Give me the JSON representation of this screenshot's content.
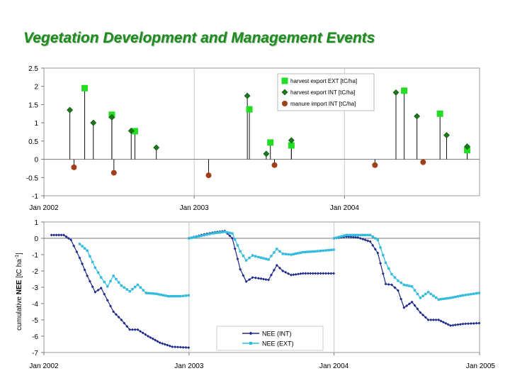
{
  "page": {
    "title": "Vegetation Development and Management Events"
  },
  "colors": {
    "harvest_ext": "#22dd22",
    "harvest_int": "#1a7a1a",
    "manure": "#a0401a",
    "nee_int": "#1e2a8a",
    "nee_ext": "#33bbdd",
    "title": "#1f8a1f"
  },
  "chart_data": [
    {
      "type": "scatter",
      "title": "",
      "xlabel": "",
      "ylabel": "",
      "x_ticks": [
        "Jan 2002",
        "Jan 2003",
        "Jan 2004"
      ],
      "x_range": [
        "2002-01-01",
        "2004-11-24"
      ],
      "ylim": [
        -1,
        2.5
      ],
      "y_ticks": [
        2.5,
        2,
        1.5,
        1,
        0.5,
        0,
        -0.5,
        -1
      ],
      "grid": "vertical lines at year boundaries",
      "legend_position": "top-right",
      "series": [
        {
          "name": "harvest export EXT [tC/ha]",
          "marker": "square",
          "points": [
            {
              "x": "2002-04-10",
              "y": 1.95
            },
            {
              "x": "2002-06-15",
              "y": 1.22
            },
            {
              "x": "2002-08-10",
              "y": 0.77
            },
            {
              "x": "2003-05-15",
              "y": 1.37
            },
            {
              "x": "2003-07-05",
              "y": 0.46
            },
            {
              "x": "2003-08-25",
              "y": 0.38
            },
            {
              "x": "2004-05-25",
              "y": 1.88
            },
            {
              "x": "2004-08-20",
              "y": 1.25
            },
            {
              "x": "2004-10-25",
              "y": 0.25
            }
          ]
        },
        {
          "name": "harvest export INT [tC/ha]",
          "marker": "diamond",
          "points": [
            {
              "x": "2002-03-05",
              "y": 1.35
            },
            {
              "x": "2002-05-01",
              "y": 1.0
            },
            {
              "x": "2002-06-15",
              "y": 1.15
            },
            {
              "x": "2002-08-01",
              "y": 0.78
            },
            {
              "x": "2002-10-01",
              "y": 0.32
            },
            {
              "x": "2003-05-10",
              "y": 1.74
            },
            {
              "x": "2003-06-25",
              "y": 0.15
            },
            {
              "x": "2003-08-25",
              "y": 0.52
            },
            {
              "x": "2004-05-05",
              "y": 1.83
            },
            {
              "x": "2004-06-25",
              "y": 1.18
            },
            {
              "x": "2004-09-05",
              "y": 0.66
            },
            {
              "x": "2004-10-25",
              "y": 0.35
            }
          ]
        },
        {
          "name": "manure import INT [tC/ha]",
          "marker": "circle",
          "points": [
            {
              "x": "2002-03-15",
              "y": -0.22
            },
            {
              "x": "2002-06-20",
              "y": -0.37
            },
            {
              "x": "2003-02-05",
              "y": -0.44
            },
            {
              "x": "2003-07-15",
              "y": -0.16
            },
            {
              "x": "2004-03-15",
              "y": -0.16
            },
            {
              "x": "2004-07-10",
              "y": -0.08
            }
          ]
        }
      ]
    },
    {
      "type": "line",
      "title": "",
      "xlabel": "",
      "ylabel": "cumulative NEE [tC ha-1]",
      "ylabel_parts": {
        "pre": "cumulative ",
        "bold": "NEE",
        "post": " [tC ha",
        "sup": "-1",
        "end": "]"
      },
      "x_ticks": [
        "Jan 2002",
        "Jan 2003",
        "Jan 2004",
        "Jan 2005"
      ],
      "x_range": [
        "2002-01-01",
        "2005-01-01"
      ],
      "ylim": [
        -7,
        1
      ],
      "y_ticks": [
        1,
        0,
        -1,
        -2,
        -3,
        -4,
        -5,
        -6,
        -7
      ],
      "grid": "vertical lines at year boundaries",
      "legend_position": "bottom-center",
      "series": [
        {
          "name": "NEE (INT)",
          "segments": [
            {
              "x": [
                "2002-01-20",
                "2002-02-20",
                "2002-03-10",
                "2002-04-01",
                "2002-04-20",
                "2002-05-10",
                "2002-05-25",
                "2002-06-10",
                "2002-06-25",
                "2002-07-15",
                "2002-08-05",
                "2002-08-25",
                "2002-09-20",
                "2002-10-20",
                "2002-11-20",
                "2002-12-31"
              ],
              "y": [
                0.2,
                0.2,
                -0.1,
                -1.2,
                -2.3,
                -3.3,
                -3.05,
                -3.8,
                -4.5,
                -5.0,
                -5.6,
                -5.6,
                -6.0,
                -6.4,
                -6.65,
                -6.7
              ]
            },
            {
              "x": [
                "2003-01-01",
                "2003-02-01",
                "2003-03-01",
                "2003-04-01",
                "2003-04-20",
                "2003-05-10",
                "2003-05-25",
                "2003-06-10",
                "2003-06-25",
                "2003-07-20",
                "2003-08-10",
                "2003-08-25",
                "2003-09-15",
                "2003-10-15",
                "2003-11-15",
                "2003-12-31"
              ],
              "y": [
                0.0,
                0.2,
                0.35,
                0.45,
                0.0,
                -1.9,
                -2.65,
                -2.4,
                -2.45,
                -2.55,
                -1.65,
                -2.0,
                -2.25,
                -2.15,
                -2.15,
                -2.15
              ]
            },
            {
              "x": [
                "2004-01-01",
                "2004-02-01",
                "2004-03-01",
                "2004-04-01",
                "2004-04-20",
                "2004-05-10",
                "2004-05-25",
                "2004-06-10",
                "2004-06-25",
                "2004-07-15",
                "2004-08-05",
                "2004-08-25",
                "2004-09-20",
                "2004-10-20",
                "2004-11-20",
                "2004-12-31"
              ],
              "y": [
                0.0,
                0.1,
                0.05,
                -0.2,
                -0.9,
                -2.8,
                -2.85,
                -3.2,
                -4.25,
                -3.9,
                -4.55,
                -5.0,
                -5.0,
                -5.35,
                -5.25,
                -5.2
              ]
            }
          ]
        },
        {
          "name": "NEE (EXT)",
          "segments": [
            {
              "x": [
                "2002-04-01",
                "2002-04-20",
                "2002-05-10",
                "2002-05-25",
                "2002-06-10",
                "2002-06-25",
                "2002-07-15",
                "2002-08-05",
                "2002-08-25",
                "2002-09-15",
                "2002-10-10",
                "2002-11-10",
                "2002-12-10",
                "2002-12-31"
              ],
              "y": [
                -0.35,
                -0.75,
                -1.8,
                -2.4,
                -2.95,
                -2.3,
                -2.9,
                -3.25,
                -2.85,
                -3.35,
                -3.4,
                -3.55,
                -3.55,
                -3.5
              ]
            },
            {
              "x": [
                "2003-01-01",
                "2003-02-01",
                "2003-03-01",
                "2003-04-01",
                "2003-04-20",
                "2003-05-10",
                "2003-05-25",
                "2003-06-10",
                "2003-06-25",
                "2003-07-20",
                "2003-08-10",
                "2003-08-25",
                "2003-09-15",
                "2003-10-15",
                "2003-11-15",
                "2003-12-31"
              ],
              "y": [
                0.0,
                0.15,
                0.3,
                0.4,
                0.3,
                -0.8,
                -1.35,
                -1.05,
                -1.15,
                -1.3,
                -0.65,
                -0.95,
                -1.0,
                -0.85,
                -0.8,
                -0.7
              ]
            },
            {
              "x": [
                "2004-01-01",
                "2004-02-01",
                "2004-03-01",
                "2004-04-01",
                "2004-04-20",
                "2004-05-10",
                "2004-05-25",
                "2004-06-10",
                "2004-06-25",
                "2004-07-15",
                "2004-08-05",
                "2004-08-25",
                "2004-09-20",
                "2004-10-20",
                "2004-11-20",
                "2004-12-31"
              ],
              "y": [
                0.0,
                0.2,
                0.2,
                0.2,
                -0.1,
                -1.5,
                -2.2,
                -2.6,
                -2.85,
                -2.95,
                -3.65,
                -3.3,
                -3.75,
                -3.65,
                -3.5,
                -3.35
              ]
            }
          ]
        }
      ]
    }
  ]
}
